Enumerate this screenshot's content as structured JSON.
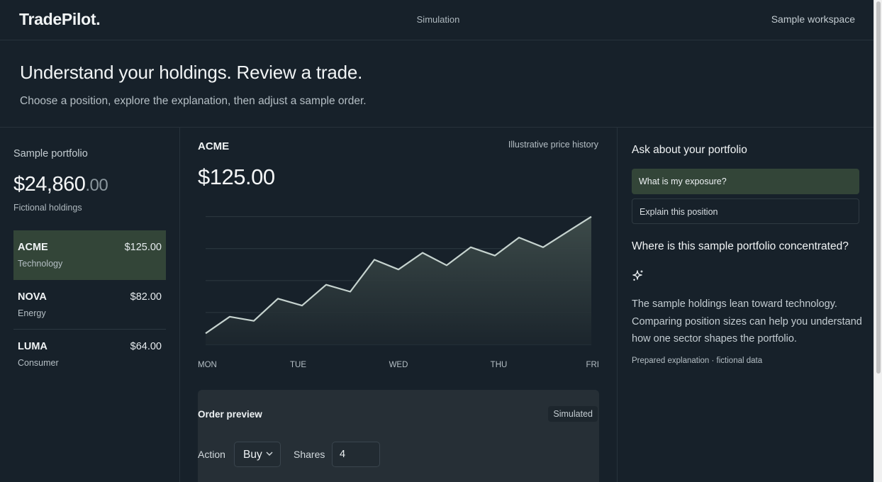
{
  "app": {
    "logo": "TradePilot.",
    "nav_center": "Simulation",
    "nav_right": "Sample workspace"
  },
  "hero": {
    "title": "Understand your holdings. Review a trade.",
    "subtitle": "Choose a position, explore the explanation, then adjust a sample order."
  },
  "portfolio": {
    "label": "Sample portfolio",
    "value_main": "$24,860",
    "value_cents": ".00",
    "sublabel": "Fictional holdings",
    "holdings": [
      {
        "ticker": "ACME",
        "sector": "Technology",
        "price": "$125.00",
        "selected": true
      },
      {
        "ticker": "NOVA",
        "sector": "Energy",
        "price": "$82.00",
        "selected": false
      },
      {
        "ticker": "LUMA",
        "sector": "Consumer",
        "price": "$64.00",
        "selected": false
      }
    ]
  },
  "chart": {
    "ticker": "ACME",
    "note": "Illustrative price history",
    "price": "$125.00"
  },
  "chart_data": {
    "type": "area",
    "categories": [
      "MON",
      "TUE",
      "WED",
      "THU",
      "FRI"
    ],
    "x": [
      0,
      0.25,
      0.5,
      0.75,
      1,
      1.25,
      1.5,
      1.75,
      2,
      2.25,
      2.5,
      2.75,
      3,
      3.25,
      3.5,
      3.75,
      4
    ],
    "values": [
      8,
      20,
      17,
      33,
      28,
      43,
      38,
      61,
      54,
      66,
      57,
      70,
      64,
      77,
      70,
      81,
      92
    ],
    "ylim": [
      0,
      100
    ],
    "grid": true,
    "color": "#c6d3cf"
  },
  "order": {
    "title": "Order preview",
    "badge": "Simulated",
    "action_label": "Action",
    "action_value": "Buy",
    "shares_label": "Shares",
    "shares_value": "4"
  },
  "assistant": {
    "title": "Ask about your portfolio",
    "suggestions": [
      "What is my exposure?",
      "Explain this position"
    ],
    "question": "Where is this sample portfolio concentrated?",
    "answer": "The sample holdings lean toward technology. Comparing position sizes can help you understand how one sector shapes the portfolio.",
    "footnote": "Prepared explanation · fictional data",
    "icon": "sparkle-icon"
  }
}
